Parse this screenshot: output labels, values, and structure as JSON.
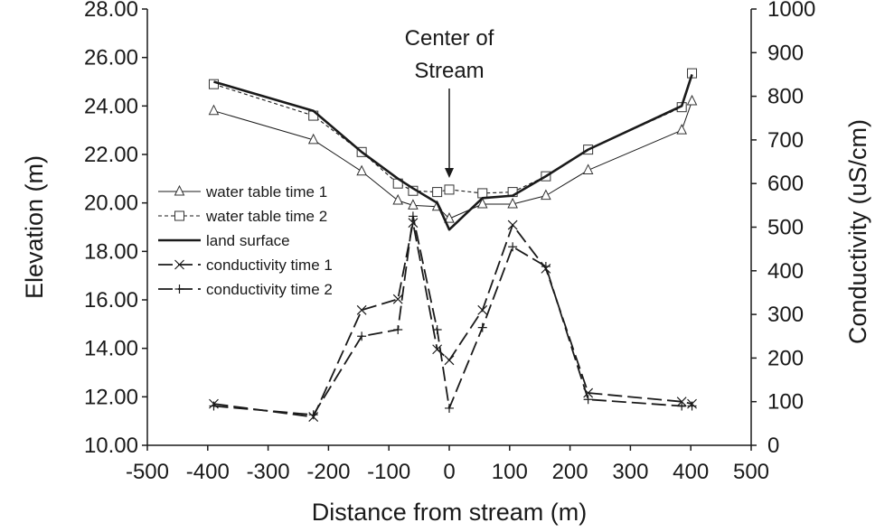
{
  "chart_data": {
    "type": "line",
    "xlabel": "Distance from stream (m)",
    "ylabel_left": "Elevation (m)",
    "ylabel_right": "Conductivity (uS/cm)",
    "xlim": [
      -500,
      500
    ],
    "xticks": [
      -500,
      -400,
      -300,
      -200,
      -100,
      0,
      100,
      200,
      300,
      400,
      500
    ],
    "xtick_labels": [
      "-500",
      "-400",
      "-300",
      "-200",
      "-100",
      "0",
      "100",
      "200",
      "300",
      "400",
      "500"
    ],
    "ylim_left": [
      10,
      28
    ],
    "yticks_left": [
      10,
      12,
      14,
      16,
      18,
      20,
      22,
      24,
      26,
      28
    ],
    "ytick_labels_left": [
      "10.00",
      "12.00",
      "14.00",
      "16.00",
      "18.00",
      "20.00",
      "22.00",
      "24.00",
      "26.00",
      "28.00"
    ],
    "ylim_right": [
      0,
      1000
    ],
    "yticks_right": [
      0,
      100,
      200,
      300,
      400,
      500,
      600,
      700,
      800,
      900,
      1000
    ],
    "ytick_labels_right": [
      "0",
      "100",
      "200",
      "300",
      "400",
      "500",
      "600",
      "700",
      "800",
      "900",
      "1000"
    ],
    "grid": false,
    "legend_position": "left",
    "annotation": {
      "lines": [
        "Center of",
        "Stream"
      ],
      "x": 0
    },
    "series": [
      {
        "name": "land surface",
        "axis": "left",
        "style": "solid-thick",
        "marker": "none",
        "x": [
          -390,
          -225,
          -145,
          -85,
          -60,
          -20,
          0,
          55,
          105,
          160,
          230,
          385,
          402
        ],
        "y": [
          25.0,
          23.8,
          22.1,
          21.0,
          20.6,
          20.0,
          18.9,
          20.2,
          20.3,
          21.1,
          22.2,
          24.0,
          25.3
        ]
      },
      {
        "name": "water table time 1",
        "axis": "left",
        "style": "solid-thin",
        "marker": "triangle",
        "x": [
          -390,
          -225,
          -145,
          -85,
          -60,
          -20,
          0,
          55,
          105,
          160,
          230,
          385,
          402
        ],
        "y": [
          23.8,
          22.6,
          21.3,
          20.1,
          19.9,
          19.85,
          19.35,
          19.95,
          19.95,
          20.3,
          21.35,
          23.0,
          24.2
        ]
      },
      {
        "name": "water table time 2",
        "axis": "left",
        "style": "dashed",
        "marker": "square",
        "x": [
          -390,
          -225,
          -145,
          -85,
          -60,
          -20,
          0,
          55,
          105,
          160,
          230,
          385,
          402
        ],
        "y": [
          24.9,
          23.6,
          22.1,
          20.8,
          20.5,
          20.45,
          20.55,
          20.4,
          20.45,
          21.1,
          22.2,
          23.95,
          25.35
        ]
      },
      {
        "name": "conductivity time 1",
        "axis": "right",
        "style": "long-dash",
        "marker": "x",
        "x": [
          -390,
          -225,
          -145,
          -85,
          -60,
          -20,
          0,
          55,
          105,
          160,
          230,
          385,
          402
        ],
        "y": [
          95,
          65,
          310,
          335,
          510,
          220,
          195,
          310,
          505,
          405,
          120,
          100,
          95
        ]
      },
      {
        "name": "conductivity time 2",
        "axis": "right",
        "style": "long-dash",
        "marker": "plus",
        "x": [
          -390,
          -225,
          -145,
          -85,
          -60,
          -20,
          0,
          55,
          105,
          160,
          230,
          385,
          402
        ],
        "y": [
          90,
          70,
          250,
          265,
          525,
          265,
          85,
          270,
          455,
          410,
          105,
          90,
          90
        ]
      }
    ]
  }
}
